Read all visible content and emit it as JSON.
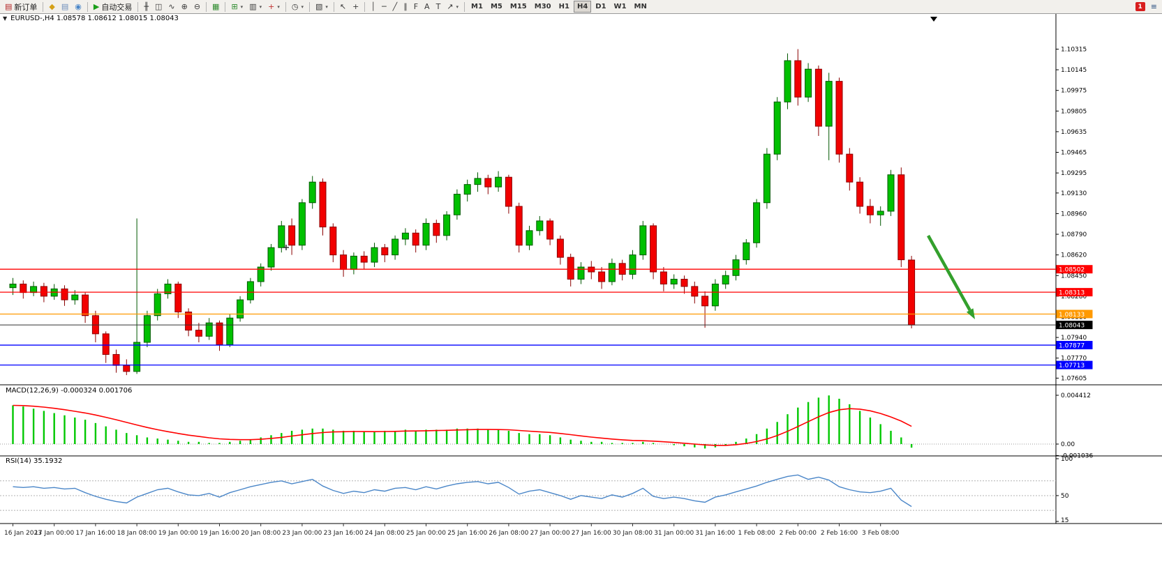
{
  "toolbar": {
    "new_order_label": "新订单",
    "autotrading_label": "自动交易",
    "timeframes": [
      "M1",
      "M5",
      "M15",
      "M30",
      "H1",
      "H4",
      "D1",
      "W1",
      "MN"
    ],
    "active_timeframe": "H4",
    "notification_count": "1",
    "icon_groups": {
      "account": [
        {
          "name": "gold-icon",
          "glyph": "◆",
          "color": "#d4a017"
        },
        {
          "name": "print-icon",
          "glyph": "▤",
          "color": "#6b8cba"
        },
        {
          "name": "signals-icon",
          "glyph": "◉",
          "color": "#4a86c8"
        }
      ],
      "chart_type": [
        {
          "name": "bar-chart-icon",
          "glyph": "╫",
          "color": "#3a3a3a"
        },
        {
          "name": "candlestick-chart-icon",
          "glyph": "◫",
          "color": "#3a3a3a"
        },
        {
          "name": "line-chart-icon",
          "glyph": "∿",
          "color": "#3a3a3a"
        }
      ],
      "zoom": [
        {
          "name": "zoom-in-icon",
          "glyph": "⊕",
          "color": "#3a3a3a"
        },
        {
          "name": "zoom-out-icon",
          "glyph": "⊖",
          "color": "#3a3a3a"
        }
      ],
      "windows": [
        {
          "name": "tile-windows-icon",
          "glyph": "▦",
          "color": "#2e8b2e"
        }
      ],
      "indicators": [
        {
          "name": "indicators-icon",
          "glyph": "⊞",
          "color": "#2e8b2e",
          "dropdown": true
        },
        {
          "name": "objects-list-icon",
          "glyph": "▥",
          "color": "#3a3a3a",
          "dropdown": true
        },
        {
          "name": "add-indicator-icon",
          "glyph": "+",
          "color": "#c03030",
          "dropdown": true
        }
      ],
      "periods": [
        {
          "name": "periods-icon",
          "glyph": "◷",
          "color": "#3a3a3a",
          "dropdown": true
        }
      ],
      "templates": [
        {
          "name": "templates-icon",
          "glyph": "▧",
          "color": "#3a3a3a",
          "dropdown": true
        }
      ],
      "cursor": [
        {
          "name": "cursor-icon",
          "glyph": "↖",
          "color": "#3a3a3a"
        },
        {
          "name": "crosshair-icon",
          "glyph": "+",
          "color": "#3a3a3a"
        }
      ],
      "draw": [
        {
          "name": "vertical-line-icon",
          "glyph": "│",
          "color": "#3a3a3a"
        },
        {
          "name": "horizontal-line-icon",
          "glyph": "─",
          "color": "#3a3a3a"
        },
        {
          "name": "trendline-icon",
          "glyph": "╱",
          "color": "#3a3a3a"
        },
        {
          "name": "channel-icon",
          "glyph": "∥",
          "color": "#3a3a3a"
        },
        {
          "name": "fibonacci-icon",
          "glyph": "F",
          "color": "#3a3a3a"
        },
        {
          "name": "text-icon",
          "glyph": "A",
          "color": "#3a3a3a"
        },
        {
          "name": "label-icon",
          "glyph": "T",
          "color": "#3a3a3a"
        },
        {
          "name": "arrows-icon",
          "glyph": "↗",
          "color": "#3a3a3a",
          "dropdown": true
        }
      ]
    }
  },
  "chart_data": [
    {
      "type": "candlestick",
      "symbol": "EURUSD-",
      "timeframe": "H4",
      "header": "EURUSD-,H4  1.08578 1.08612 1.08015 1.08043",
      "ohlc": {
        "open": 1.08578,
        "high": 1.08612,
        "low": 1.08015,
        "close": 1.08043
      },
      "ylim": [
        1.0755,
        1.1049
      ],
      "y_ticks": [
        "1.10315",
        "1.10145",
        "1.09975",
        "1.09805",
        "1.09635",
        "1.09465",
        "1.09295",
        "1.09130",
        "1.08960",
        "1.08790",
        "1.08620",
        "1.08450",
        "1.08280",
        "1.08110",
        "1.07940",
        "1.07770",
        "1.07605"
      ],
      "x_labels": [
        "16 Jan 2023",
        "17 Jan 00:00",
        "17 Jan 16:00",
        "18 Jan 08:00",
        "19 Jan 00:00",
        "19 Jan 16:00",
        "20 Jan 08:00",
        "23 Jan 00:00",
        "23 Jan 16:00",
        "24 Jan 08:00",
        "25 Jan 00:00",
        "25 Jan 16:00",
        "26 Jan 08:00",
        "27 Jan 00:00",
        "27 Jan 16:00",
        "30 Jan 08:00",
        "31 Jan 00:00",
        "31 Jan 16:00",
        "1 Feb 08:00",
        "2 Feb 00:00",
        "2 Feb 16:00",
        "3 Feb 08:00"
      ],
      "label_step": 4,
      "candles": [
        [
          1.0835,
          1.0843,
          1.0829,
          1.0838
        ],
        [
          1.0838,
          1.0841,
          1.0826,
          1.0831
        ],
        [
          1.0831,
          1.084,
          1.0828,
          1.0836
        ],
        [
          1.0836,
          1.0839,
          1.0823,
          1.0828
        ],
        [
          1.0828,
          1.0838,
          1.0825,
          1.0834
        ],
        [
          1.0834,
          1.0837,
          1.082,
          1.0825
        ],
        [
          1.0825,
          1.0833,
          1.0821,
          1.0829
        ],
        [
          1.0829,
          1.0831,
          1.0806,
          1.0812
        ],
        [
          1.0812,
          1.0816,
          1.079,
          1.0797
        ],
        [
          1.0797,
          1.0799,
          1.0773,
          1.078
        ],
        [
          1.078,
          1.0784,
          1.0765,
          1.0771
        ],
        [
          1.0771,
          1.0776,
          1.0763,
          1.0766
        ],
        [
          1.0766,
          1.0892,
          1.0764,
          1.079
        ],
        [
          1.079,
          1.0816,
          1.0786,
          1.0812
        ],
        [
          1.0812,
          1.0834,
          1.0808,
          1.083
        ],
        [
          1.083,
          1.0842,
          1.0826,
          1.0838
        ],
        [
          1.0838,
          1.084,
          1.081,
          1.0815
        ],
        [
          1.0815,
          1.0818,
          1.0795,
          1.08
        ],
        [
          1.08,
          1.0806,
          1.079,
          1.0795
        ],
        [
          1.0795,
          1.081,
          1.0792,
          1.0806
        ],
        [
          1.0806,
          1.0808,
          1.0783,
          1.0788
        ],
        [
          1.0788,
          1.0813,
          1.0786,
          1.081
        ],
        [
          1.081,
          1.0828,
          1.0807,
          1.0825
        ],
        [
          1.0825,
          1.0843,
          1.0822,
          1.084
        ],
        [
          1.084,
          1.0855,
          1.0836,
          1.0852
        ],
        [
          1.0852,
          1.0871,
          1.0849,
          1.0868
        ],
        [
          1.0868,
          1.089,
          1.0864,
          1.0886
        ],
        [
          1.0886,
          1.0892,
          1.0862,
          1.087
        ],
        [
          1.087,
          1.0908,
          1.0866,
          1.0905
        ],
        [
          1.0905,
          1.0927,
          1.09,
          1.0922
        ],
        [
          1.0922,
          1.0925,
          1.0878,
          1.0885
        ],
        [
          1.0885,
          1.0888,
          1.0856,
          1.0862
        ],
        [
          1.0862,
          1.0866,
          1.0844,
          1.085
        ],
        [
          1.085,
          1.0864,
          1.0846,
          1.0861
        ],
        [
          1.0861,
          1.0865,
          1.085,
          1.0856
        ],
        [
          1.0856,
          1.0872,
          1.0852,
          1.0868
        ],
        [
          1.0868,
          1.0871,
          1.0856,
          1.0862
        ],
        [
          1.0862,
          1.0878,
          1.0858,
          1.0875
        ],
        [
          1.0875,
          1.0884,
          1.087,
          1.088
        ],
        [
          1.088,
          1.0883,
          1.0864,
          1.087
        ],
        [
          1.087,
          1.0892,
          1.0866,
          1.0888
        ],
        [
          1.0888,
          1.0891,
          1.0872,
          1.0878
        ],
        [
          1.0878,
          1.0898,
          1.0874,
          1.0895
        ],
        [
          1.0895,
          1.0916,
          1.0891,
          1.0912
        ],
        [
          1.0912,
          1.0924,
          1.0906,
          1.092
        ],
        [
          1.092,
          1.093,
          1.0914,
          1.0925
        ],
        [
          1.0925,
          1.0928,
          1.0912,
          1.0918
        ],
        [
          1.0918,
          1.0931,
          1.0914,
          1.0926
        ],
        [
          1.0926,
          1.0928,
          1.0896,
          1.0902
        ],
        [
          1.0902,
          1.0905,
          1.0864,
          1.087
        ],
        [
          1.087,
          1.0886,
          1.0866,
          1.0882
        ],
        [
          1.0882,
          1.0894,
          1.0878,
          1.089
        ],
        [
          1.089,
          1.0892,
          1.087,
          1.0875
        ],
        [
          1.0875,
          1.0878,
          1.0854,
          1.086
        ],
        [
          1.086,
          1.0863,
          1.0836,
          1.0842
        ],
        [
          1.0842,
          1.0856,
          1.0838,
          1.0852
        ],
        [
          1.0852,
          1.0857,
          1.0842,
          1.0848
        ],
        [
          1.0848,
          1.0852,
          1.0834,
          1.084
        ],
        [
          1.084,
          1.0859,
          1.0837,
          1.0855
        ],
        [
          1.0855,
          1.0858,
          1.0841,
          1.0846
        ],
        [
          1.0846,
          1.0866,
          1.0842,
          1.0862
        ],
        [
          1.0862,
          1.089,
          1.0858,
          1.0886
        ],
        [
          1.0886,
          1.0888,
          1.0842,
          1.0848
        ],
        [
          1.0848,
          1.0852,
          1.0832,
          1.0838
        ],
        [
          1.0838,
          1.0846,
          1.0834,
          1.0842
        ],
        [
          1.0842,
          1.0845,
          1.083,
          1.0836
        ],
        [
          1.0836,
          1.084,
          1.0822,
          1.0828
        ],
        [
          1.0828,
          1.0832,
          1.0802,
          1.082
        ],
        [
          1.082,
          1.0842,
          1.0816,
          1.0838
        ],
        [
          1.0838,
          1.0849,
          1.0834,
          1.0845
        ],
        [
          1.0845,
          1.0862,
          1.0841,
          1.0858
        ],
        [
          1.0858,
          1.0875,
          1.0854,
          1.0872
        ],
        [
          1.0872,
          1.0908,
          1.0868,
          1.0905
        ],
        [
          1.0905,
          1.095,
          1.09,
          1.0945
        ],
        [
          1.0945,
          1.0992,
          1.094,
          1.0988
        ],
        [
          1.0988,
          1.1028,
          1.0982,
          1.1022
        ],
        [
          1.1022,
          1.10315,
          1.0985,
          1.0992
        ],
        [
          1.0992,
          1.102,
          1.0988,
          1.1015
        ],
        [
          1.1015,
          1.1018,
          1.096,
          1.0968
        ],
        [
          1.0968,
          1.1012,
          1.094,
          1.1005
        ],
        [
          1.1005,
          1.1008,
          1.0938,
          1.0945
        ],
        [
          1.0945,
          1.095,
          1.0915,
          1.0922
        ],
        [
          1.0922,
          1.0926,
          1.0896,
          1.0902
        ],
        [
          1.0902,
          1.0908,
          1.0888,
          1.0895
        ],
        [
          1.0895,
          1.0902,
          1.0886,
          1.0898
        ],
        [
          1.0898,
          1.0932,
          1.0894,
          1.0928
        ],
        [
          1.0928,
          1.0934,
          1.0852,
          1.0858
        ],
        [
          1.08578,
          1.08612,
          1.08015,
          1.08043
        ]
      ],
      "colors": {
        "bull": "#00C000",
        "bull_border": "#005800",
        "bear": "#F20000",
        "bear_border": "#8B0000"
      },
      "hlines": [
        {
          "price": 1.08502,
          "label": "1.08502",
          "color": "#FF0000"
        },
        {
          "price": 1.08313,
          "label": "1.08313",
          "color": "#FF0000"
        },
        {
          "price": 1.08133,
          "label": "1.08133",
          "color": "#FF9900"
        },
        {
          "price": 1.08043,
          "label": "1.08043",
          "color": "#000000",
          "current": true
        },
        {
          "price": 1.07877,
          "label": "1.07877",
          "color": "#0000FF"
        },
        {
          "price": 1.07713,
          "label": "1.07713",
          "color": "#0000FF"
        }
      ],
      "arrow": {
        "from": [
          1330,
          338
        ],
        "to": [
          1397,
          458
        ],
        "color": "#33A02C"
      },
      "cross_marker": {
        "x": 410,
        "y": 355
      }
    },
    {
      "type": "bar",
      "name": "MACD",
      "title": "MACD(12,26,9) -0.000324 0.001706",
      "values": [
        0.0035,
        0.0034,
        0.0032,
        0.003,
        0.0028,
        0.0026,
        0.0024,
        0.0022,
        0.0019,
        0.0016,
        0.0013,
        0.001,
        0.0008,
        0.0006,
        0.0005,
        0.0004,
        0.0003,
        0.0002,
        0.0002,
        0.0001,
        0.0001,
        0.0002,
        0.0003,
        0.0004,
        0.0006,
        0.0008,
        0.001,
        0.0012,
        0.0013,
        0.0014,
        0.0014,
        0.0013,
        0.0012,
        0.0012,
        0.0011,
        0.0011,
        0.0012,
        0.0012,
        0.0013,
        0.0012,
        0.0013,
        0.0013,
        0.0013,
        0.0014,
        0.0014,
        0.0014,
        0.0013,
        0.0013,
        0.0012,
        0.001,
        0.0009,
        0.0009,
        0.0008,
        0.0006,
        0.0004,
        0.0003,
        0.0002,
        0.0002,
        0.0001,
        0.0001,
        0.0001,
        0.0002,
        0.0001,
        0.0,
        -0.0001,
        -0.0002,
        -0.0003,
        -0.0004,
        -0.0003,
        -0.0001,
        0.0002,
        0.0005,
        0.0009,
        0.0014,
        0.002,
        0.0027,
        0.0033,
        0.0038,
        0.0042,
        0.0044,
        0.0041,
        0.0036,
        0.003,
        0.0024,
        0.0018,
        0.0012,
        0.0006,
        -0.000324
      ],
      "signal_period": 9,
      "axis_labels": [
        {
          "text": "0.004412",
          "value": 0.004412
        },
        {
          "text": "0.00",
          "value": 0
        },
        {
          "text": "-0.001036",
          "value": -0.001036
        }
      ],
      "colors": {
        "histogram": "#00C800",
        "signal": "#FF0000"
      }
    },
    {
      "type": "line",
      "name": "RSI",
      "title": "RSI(14) 35.1932",
      "values": [
        62,
        61,
        62,
        60,
        61,
        59,
        60,
        54,
        49,
        45,
        42,
        40,
        48,
        53,
        58,
        60,
        55,
        51,
        50,
        53,
        48,
        54,
        58,
        62,
        65,
        68,
        70,
        66,
        69,
        72,
        63,
        57,
        53,
        56,
        54,
        58,
        56,
        60,
        61,
        58,
        62,
        59,
        63,
        66,
        68,
        69,
        66,
        68,
        61,
        52,
        56,
        58,
        54,
        50,
        45,
        50,
        48,
        46,
        51,
        48,
        53,
        60,
        49,
        46,
        48,
        46,
        43,
        41,
        48,
        51,
        55,
        59,
        63,
        68,
        72,
        76,
        78,
        72,
        75,
        71,
        62,
        58,
        55,
        54,
        56,
        60,
        44,
        35.1932
      ],
      "scale": [
        15,
        100
      ],
      "levels": [
        70,
        50,
        30
      ],
      "axis_labels": [
        {
          "text": "100",
          "value": 100
        },
        {
          "text": "50",
          "value": 50
        },
        {
          "text": "15",
          "value": 15
        }
      ],
      "color": "#4A86C8"
    }
  ]
}
